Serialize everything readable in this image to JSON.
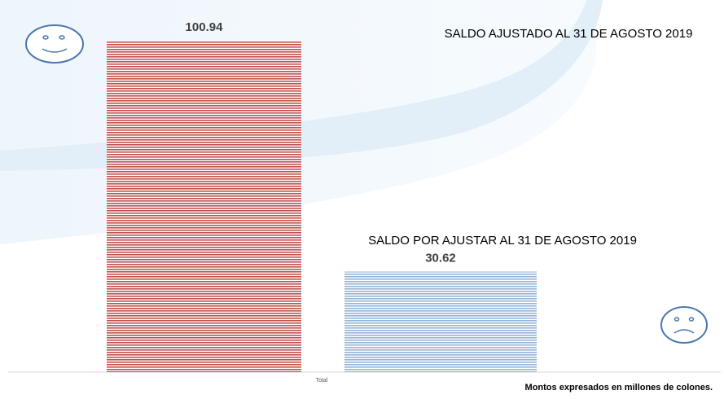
{
  "chart_data": {
    "type": "bar",
    "categories": [
      "Total"
    ],
    "series": [
      {
        "name": "SALDO AJUSTADO AL 31 DE AGOSTO 2019",
        "color": "#c0504d",
        "values": [
          100.94
        ]
      },
      {
        "name": "SALDO POR AJUSTAR AL 31 DE AGOSTO 2019",
        "color": "#95b3d7",
        "values": [
          30.62
        ]
      }
    ],
    "footnote": "Montos expresados en millones de colones."
  }
}
